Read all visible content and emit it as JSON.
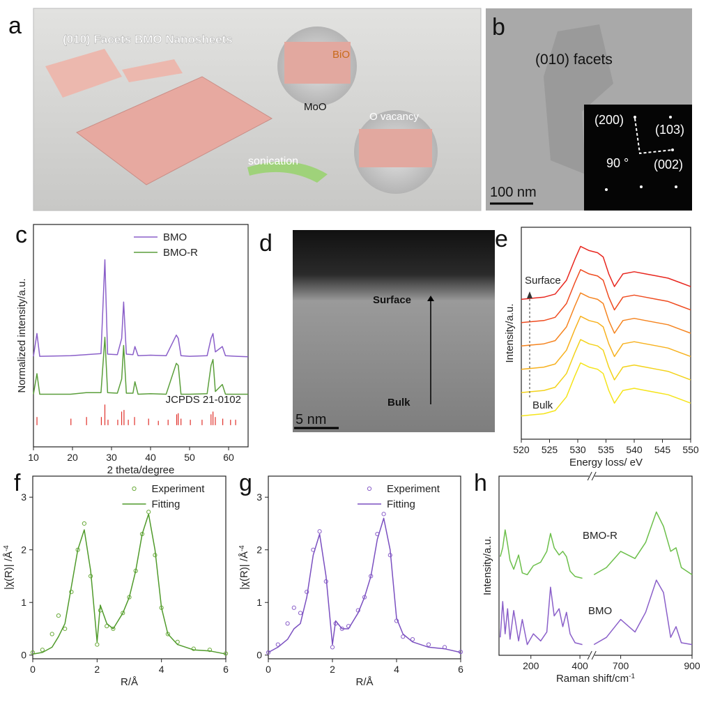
{
  "panels": {
    "a": {
      "label": "a",
      "title": "(010) Facets BMO Nanosheets",
      "bio": "BiO",
      "moo": "MoO",
      "vacancy": "O vacancy",
      "arrow": "sonication"
    },
    "b": {
      "label": "b",
      "facet": "(010) facets",
      "scale": "100 nm",
      "spots": [
        "(200)",
        "(103)",
        "(002)"
      ],
      "angle": "90 °"
    },
    "d": {
      "label": "d",
      "surface": "Surface",
      "bulk": "Bulk",
      "scale": "5 nm"
    }
  },
  "chart_data": [
    {
      "type": "line",
      "panel_label": "c",
      "xlabel": "2 theta/degree",
      "ylabel": "Normalized intensity/a.u.",
      "xlim": [
        10,
        65
      ],
      "xticks": [
        10,
        20,
        30,
        40,
        50,
        60
      ],
      "ylim": [
        -0.4,
        3.7
      ],
      "legend": "upper right",
      "x": [
        10,
        10.9,
        11.6,
        19.5,
        23.5,
        27.3,
        28.3,
        29.0,
        31.5,
        32.6,
        33.1,
        33.8,
        35.5,
        36.0,
        36.8,
        40,
        44,
        46.6,
        47.1,
        47.8,
        50,
        54.5,
        55.5,
        56.0,
        56.6,
        58.4,
        59.2,
        62,
        65
      ],
      "series": [
        {
          "name": "BMO",
          "color": "#8a5fc9",
          "values": [
            1.27,
            1.69,
            1.27,
            1.28,
            1.3,
            1.32,
            3.05,
            1.31,
            1.3,
            1.6,
            2.27,
            1.31,
            1.3,
            1.45,
            1.28,
            1.29,
            1.28,
            1.66,
            1.6,
            1.28,
            1.27,
            1.28,
            1.6,
            1.69,
            1.35,
            1.45,
            1.28,
            1.27,
            1.26
          ]
        },
        {
          "name": "BMO-R",
          "color": "#5a9e3a",
          "values": [
            0.57,
            0.95,
            0.57,
            0.57,
            0.6,
            0.6,
            1.62,
            0.6,
            0.59,
            0.85,
            1.47,
            0.59,
            0.59,
            0.8,
            0.57,
            0.58,
            0.57,
            1.14,
            1.1,
            0.57,
            0.57,
            0.58,
            1.1,
            1.21,
            0.62,
            0.75,
            0.57,
            0.57,
            0.57
          ]
        }
      ],
      "reference": {
        "name": "JCPDS 21-0102",
        "color": "#e0302a",
        "x": [
          10.9,
          19.6,
          23.6,
          27.4,
          28.3,
          29.1,
          31.6,
          32.6,
          33.2,
          34.3,
          35.9,
          39.5,
          42.0,
          44.5,
          46.7,
          47.1,
          47.8,
          50.2,
          53.2,
          55.5,
          56.0,
          56.6,
          58.5,
          60.5,
          61.8
        ],
        "values": [
          0.15,
          0.12,
          0.15,
          0.15,
          0.38,
          0.1,
          0.1,
          0.25,
          0.28,
          0.1,
          0.15,
          0.12,
          0.08,
          0.1,
          0.2,
          0.22,
          0.12,
          0.1,
          0.1,
          0.2,
          0.25,
          0.15,
          0.12,
          0.1,
          0.1
        ]
      }
    },
    {
      "type": "line",
      "panel_label": "e",
      "xlabel": "Energy loss/ eV",
      "ylabel": "Intensity/a.u.",
      "xlim": [
        520,
        550
      ],
      "xticks": [
        520,
        525,
        530,
        535,
        540,
        545,
        550
      ],
      "ylim": [
        0,
        10
      ],
      "annotations": [
        "Surface",
        "Bulk"
      ],
      "x": [
        520,
        522,
        524,
        526,
        528,
        529.5,
        530.5,
        532,
        533.5,
        534.5,
        535.5,
        536.5,
        538,
        540,
        542,
        544,
        546,
        548,
        550
      ],
      "series": [
        {
          "color": "#e8261e",
          "values": [
            6.6,
            6.65,
            6.7,
            6.85,
            7.5,
            8.5,
            9.1,
            8.9,
            8.8,
            8.6,
            7.8,
            7.2,
            7.8,
            7.9,
            7.8,
            7.7,
            7.6,
            7.4,
            7.2
          ]
        },
        {
          "color": "#ef4b1f",
          "values": [
            5.5,
            5.55,
            5.6,
            5.75,
            6.4,
            7.4,
            8.0,
            7.8,
            7.7,
            7.5,
            6.7,
            6.1,
            6.7,
            6.8,
            6.7,
            6.6,
            6.5,
            6.3,
            6.1
          ]
        },
        {
          "color": "#f5841f",
          "values": [
            4.4,
            4.45,
            4.5,
            4.65,
            5.3,
            6.3,
            6.9,
            6.7,
            6.6,
            6.4,
            5.6,
            5.0,
            5.6,
            5.7,
            5.6,
            5.5,
            5.4,
            5.2,
            5.0
          ]
        },
        {
          "color": "#f7b11e",
          "values": [
            3.3,
            3.35,
            3.4,
            3.55,
            4.2,
            5.2,
            5.8,
            5.6,
            5.5,
            5.3,
            4.5,
            3.9,
            4.5,
            4.6,
            4.5,
            4.4,
            4.3,
            4.1,
            3.9
          ]
        },
        {
          "color": "#f3d21a",
          "values": [
            2.2,
            2.25,
            2.3,
            2.45,
            3.1,
            4.1,
            4.7,
            4.5,
            4.4,
            4.2,
            3.4,
            2.8,
            3.4,
            3.5,
            3.4,
            3.3,
            3.2,
            3.0,
            2.8
          ]
        },
        {
          "color": "#f5e41a",
          "values": [
            1.1,
            1.15,
            1.2,
            1.35,
            2.0,
            3.0,
            3.6,
            3.4,
            3.3,
            3.1,
            2.3,
            1.7,
            2.3,
            2.4,
            2.3,
            2.2,
            2.1,
            1.9,
            1.7
          ]
        }
      ]
    },
    {
      "type": "line",
      "panel_label": "f",
      "xlabel": "R/Å",
      "ylabel": "|χ(R)| /Å",
      "ylabel_superscript": "-4",
      "xlim": [
        0,
        6
      ],
      "xticks": [
        0,
        2,
        4,
        6
      ],
      "ylim": [
        -0.07,
        3.4
      ],
      "yticks": [
        0,
        1,
        2,
        3
      ],
      "legend": "upper right",
      "x": [
        0,
        0.3,
        0.6,
        0.8,
        1.0,
        1.2,
        1.4,
        1.6,
        1.8,
        2.0,
        2.1,
        2.3,
        2.5,
        2.8,
        3.0,
        3.2,
        3.4,
        3.6,
        3.8,
        4.0,
        4.2,
        4.5,
        5,
        5.5,
        6
      ],
      "series": [
        {
          "name": "Experiment",
          "style": "markers",
          "color": "#6aaa3a",
          "values": [
            0.05,
            0.1,
            0.4,
            0.75,
            0.5,
            1.2,
            2.0,
            2.5,
            1.5,
            0.2,
            0.85,
            0.55,
            0.5,
            0.8,
            1.1,
            1.6,
            2.3,
            2.72,
            1.9,
            0.9,
            0.4,
            0.25,
            0.12,
            0.1,
            0.03
          ]
        },
        {
          "name": "Fitting",
          "style": "line",
          "color": "#4f9a2a",
          "values": [
            0.02,
            0.05,
            0.15,
            0.35,
            0.6,
            1.3,
            2.0,
            2.38,
            1.6,
            0.25,
            0.95,
            0.6,
            0.5,
            0.8,
            1.1,
            1.6,
            2.3,
            2.68,
            2.0,
            0.9,
            0.4,
            0.2,
            0.1,
            0.08,
            0.02
          ]
        }
      ]
    },
    {
      "type": "line",
      "panel_label": "g",
      "xlabel": "R/Å",
      "ylabel": "|χ(R)| /Å",
      "ylabel_superscript": "-4",
      "xlim": [
        0,
        6
      ],
      "xticks": [
        0,
        2,
        4,
        6
      ],
      "ylim": [
        -0.07,
        3.4
      ],
      "yticks": [
        0,
        1,
        2,
        3
      ],
      "legend": "upper right",
      "x": [
        0,
        0.3,
        0.6,
        0.8,
        1.0,
        1.2,
        1.4,
        1.6,
        1.8,
        2.0,
        2.1,
        2.3,
        2.5,
        2.8,
        3.0,
        3.2,
        3.4,
        3.6,
        3.8,
        4.0,
        4.2,
        4.5,
        5,
        5.5,
        6
      ],
      "series": [
        {
          "name": "Experiment",
          "style": "markers",
          "color": "#8a5fc9",
          "values": [
            0.05,
            0.2,
            0.6,
            0.9,
            0.8,
            1.2,
            2.0,
            2.35,
            1.4,
            0.15,
            0.6,
            0.5,
            0.55,
            0.85,
            1.1,
            1.5,
            2.3,
            2.68,
            1.9,
            0.65,
            0.35,
            0.3,
            0.2,
            0.15,
            0.06
          ]
        },
        {
          "name": "Fitting",
          "style": "line",
          "color": "#7a4fc0",
          "values": [
            0.05,
            0.15,
            0.3,
            0.5,
            0.6,
            1.1,
            1.9,
            2.3,
            1.5,
            0.2,
            0.65,
            0.5,
            0.5,
            0.8,
            1.1,
            1.5,
            2.2,
            2.6,
            2.0,
            0.7,
            0.4,
            0.25,
            0.15,
            0.12,
            0.05
          ]
        }
      ]
    },
    {
      "type": "line",
      "panel_label": "h",
      "xlabel": "Raman shift/cm",
      "xlabel_superscript": "-1",
      "ylabel": "Intensity/a.u.",
      "xlim": [
        70,
        900
      ],
      "x_break": [
        440,
        625
      ],
      "xticks": [
        200,
        400,
        700,
        900
      ],
      "ylim": [
        0,
        10
      ],
      "legend": "inline",
      "x": [
        75,
        85,
        95,
        105,
        115,
        130,
        150,
        165,
        185,
        210,
        240,
        265,
        280,
        295,
        315,
        330,
        345,
        360,
        380,
        410,
        440,
        625,
        660,
        700,
        740,
        770,
        800,
        820,
        840,
        855,
        870,
        900
      ],
      "series": [
        {
          "name": "BMO-R",
          "color": "#6cbf4a",
          "values": [
            5.5,
            6.0,
            7.0,
            6.2,
            5.3,
            4.8,
            5.6,
            4.6,
            4.5,
            5.0,
            5.2,
            5.8,
            6.8,
            6.0,
            5.6,
            5.8,
            5.5,
            4.7,
            4.4,
            4.3,
            null,
            4.5,
            4.9,
            5.8,
            5.4,
            6.3,
            8.0,
            7.2,
            5.8,
            6.0,
            4.9,
            4.5
          ]
        },
        {
          "name": "BMO",
          "color": "#8a5fc9",
          "values": [
            1.0,
            3.0,
            1.2,
            2.6,
            0.9,
            2.5,
            0.8,
            2.0,
            0.6,
            1.2,
            0.8,
            1.3,
            3.8,
            2.2,
            2.6,
            1.6,
            2.4,
            1.2,
            0.7,
            0.6,
            null,
            0.6,
            1.0,
            2.0,
            1.3,
            2.4,
            4.2,
            3.5,
            1.0,
            1.6,
            0.7,
            0.6
          ]
        }
      ]
    }
  ]
}
